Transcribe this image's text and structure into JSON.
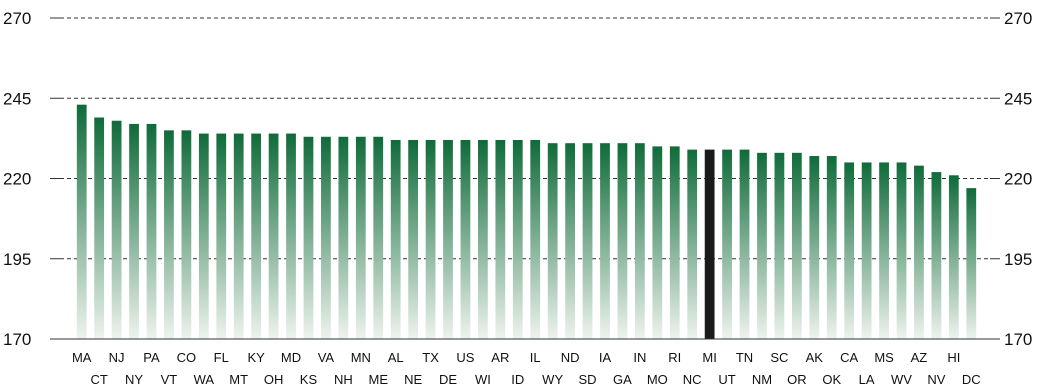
{
  "chart_data": {
    "type": "bar",
    "title": "",
    "xlabel": "",
    "ylabel": "",
    "ylim": [
      170,
      270
    ],
    "yticks": [
      170,
      195,
      220,
      245,
      270
    ],
    "grid": true,
    "highlight": "MI",
    "colors": {
      "bar_top": "#0f6b3a",
      "bar_bottom": "#eef3ee",
      "highlight": "#1a1a1a"
    },
    "categories": [
      "MA",
      "CT",
      "NJ",
      "NY",
      "PA",
      "VT",
      "CO",
      "WA",
      "FL",
      "MT",
      "KY",
      "OH",
      "MD",
      "KS",
      "VA",
      "NH",
      "MN",
      "ME",
      "AL",
      "NE",
      "TX",
      "DE",
      "US",
      "WI",
      "AR",
      "ID",
      "IL",
      "WY",
      "ND",
      "SD",
      "IA",
      "GA",
      "IN",
      "MO",
      "RI",
      "NC",
      "MI",
      "UT",
      "TN",
      "NM",
      "SC",
      "OR",
      "AK",
      "OK",
      "CA",
      "LA",
      "MS",
      "WV",
      "AZ",
      "NV",
      "HI",
      "DC"
    ],
    "values": [
      243,
      239,
      238,
      237,
      237,
      235,
      235,
      234,
      234,
      234,
      234,
      234,
      234,
      233,
      233,
      233,
      233,
      233,
      232,
      232,
      232,
      232,
      232,
      232,
      232,
      232,
      232,
      231,
      231,
      231,
      231,
      231,
      231,
      230,
      230,
      229,
      229,
      229,
      229,
      228,
      228,
      228,
      227,
      227,
      225,
      225,
      225,
      225,
      224,
      222,
      221,
      217
    ]
  }
}
